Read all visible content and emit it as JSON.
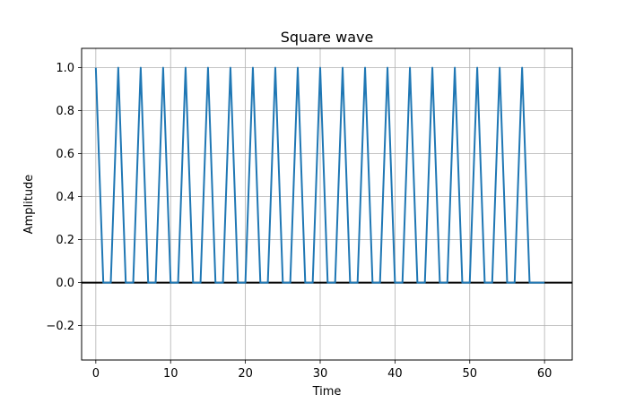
{
  "chart_data": {
    "type": "line",
    "title": "Square wave",
    "xlabel": "Time",
    "ylabel": "Amplitude",
    "xlim": [
      -1.9,
      63.7
    ],
    "ylim": [
      -0.36,
      1.09
    ],
    "xticks": [
      0,
      10,
      20,
      30,
      40,
      50,
      60
    ],
    "xtick_labels": [
      "0",
      "10",
      "20",
      "30",
      "40",
      "50",
      "60"
    ],
    "yticks": [
      -0.2,
      0.0,
      0.2,
      0.4,
      0.6,
      0.8,
      1.0
    ],
    "ytick_labels": [
      "−0.2",
      "0.0",
      "0.2",
      "0.4",
      "0.6",
      "0.8",
      "1.0"
    ],
    "grid": true,
    "reference_line": {
      "y": 0,
      "color": "#000000"
    },
    "series": [
      {
        "color": "#1f77b4",
        "x": [
          0,
          1,
          2,
          3,
          4,
          5,
          6,
          7,
          8,
          9,
          10,
          11,
          12,
          13,
          14,
          15,
          16,
          17,
          18,
          19,
          20,
          21,
          22,
          23,
          24,
          25,
          26,
          27,
          28,
          29,
          30,
          31,
          32,
          33,
          34,
          35,
          36,
          37,
          38,
          39,
          40,
          41,
          42,
          43,
          44,
          45,
          46,
          47,
          48,
          49,
          50,
          51,
          52,
          53,
          54,
          55,
          56,
          57,
          58,
          59,
          60
        ],
        "y": [
          1,
          0,
          0,
          1,
          0,
          0,
          1,
          0,
          0,
          1,
          0,
          0,
          1,
          0,
          0,
          1,
          0,
          0,
          1,
          0,
          0,
          1,
          0,
          0,
          1,
          0,
          0,
          1,
          0,
          0,
          1,
          0,
          0,
          1,
          0,
          0,
          1,
          0,
          0,
          1,
          0,
          0,
          1,
          0,
          0,
          1,
          0,
          0,
          1,
          0,
          0,
          1,
          0,
          0,
          1,
          0,
          0,
          1,
          0,
          0,
          0
        ]
      }
    ]
  }
}
